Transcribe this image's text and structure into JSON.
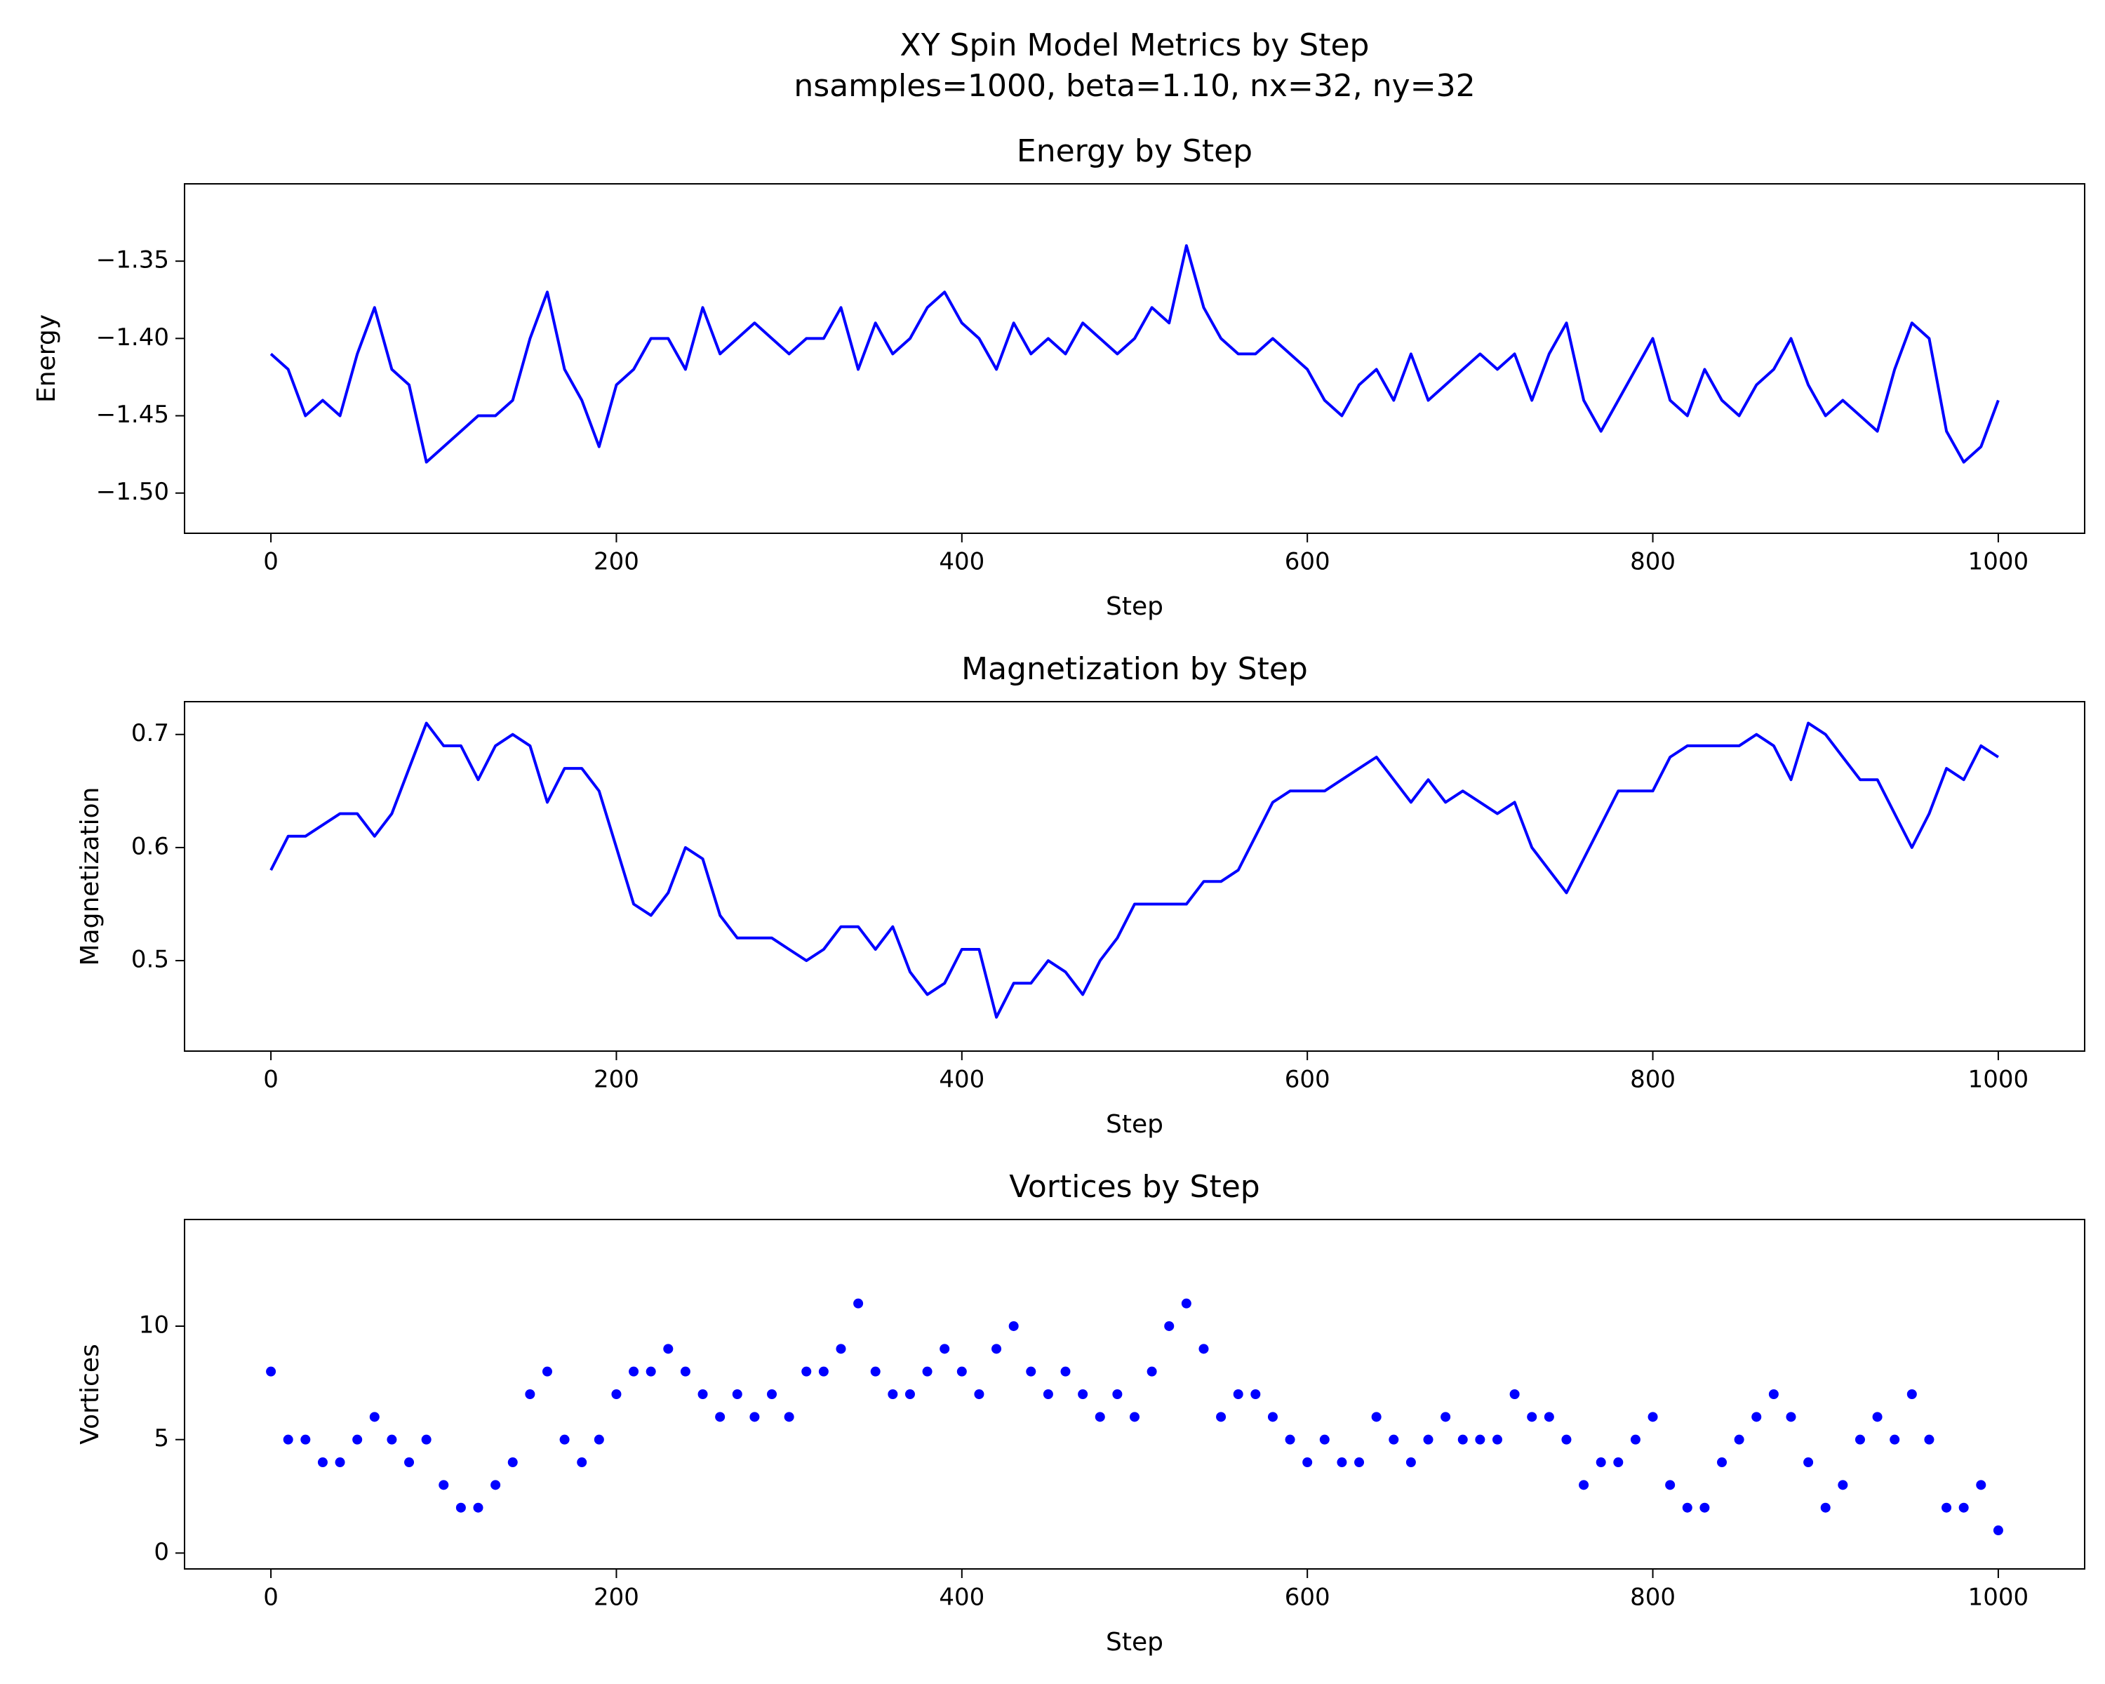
{
  "title": "XY Spin Model Metrics by Step",
  "subtitle": "nsamples=1000, beta=1.10, nx=32, ny=32",
  "chart_data": [
    {
      "type": "line",
      "title": "Energy by Step",
      "xlabel": "Step",
      "ylabel": "Energy",
      "color": "#0000ff",
      "x": [
        0,
        10,
        20,
        30,
        40,
        50,
        60,
        70,
        80,
        90,
        100,
        110,
        120,
        130,
        140,
        150,
        160,
        170,
        180,
        190,
        200,
        210,
        220,
        230,
        240,
        250,
        260,
        270,
        280,
        290,
        300,
        310,
        320,
        330,
        340,
        350,
        360,
        370,
        380,
        390,
        400,
        410,
        420,
        430,
        440,
        450,
        460,
        470,
        480,
        490,
        500,
        510,
        520,
        530,
        540,
        550,
        560,
        570,
        580,
        590,
        600,
        610,
        620,
        630,
        640,
        650,
        660,
        670,
        680,
        690,
        700,
        710,
        720,
        730,
        740,
        750,
        760,
        770,
        780,
        790,
        800,
        810,
        820,
        830,
        840,
        850,
        860,
        870,
        880,
        890,
        900,
        910,
        920,
        930,
        940,
        950,
        960,
        970,
        980,
        990,
        1000
      ],
      "values": [
        -1.41,
        -1.42,
        -1.45,
        -1.44,
        -1.45,
        -1.41,
        -1.38,
        -1.42,
        -1.43,
        -1.48,
        -1.47,
        -1.46,
        -1.45,
        -1.45,
        -1.44,
        -1.4,
        -1.37,
        -1.42,
        -1.44,
        -1.47,
        -1.43,
        -1.42,
        -1.4,
        -1.4,
        -1.42,
        -1.38,
        -1.41,
        -1.4,
        -1.39,
        -1.4,
        -1.41,
        -1.4,
        -1.4,
        -1.38,
        -1.42,
        -1.39,
        -1.41,
        -1.4,
        -1.38,
        -1.37,
        -1.39,
        -1.4,
        -1.42,
        -1.39,
        -1.41,
        -1.4,
        -1.41,
        -1.39,
        -1.4,
        -1.41,
        -1.4,
        -1.38,
        -1.39,
        -1.34,
        -1.38,
        -1.4,
        -1.41,
        -1.41,
        -1.4,
        -1.41,
        -1.42,
        -1.44,
        -1.45,
        -1.43,
        -1.42,
        -1.44,
        -1.41,
        -1.44,
        -1.43,
        -1.42,
        -1.41,
        -1.42,
        -1.41,
        -1.44,
        -1.41,
        -1.39,
        -1.44,
        -1.46,
        -1.44,
        -1.42,
        -1.4,
        -1.44,
        -1.45,
        -1.42,
        -1.44,
        -1.45,
        -1.43,
        -1.42,
        -1.4,
        -1.43,
        -1.45,
        -1.44,
        -1.45,
        -1.46,
        -1.42,
        -1.39,
        -1.4,
        -1.46,
        -1.48,
        -1.47,
        -1.44
      ],
      "xlim": [
        -50,
        1050
      ],
      "ylim": [
        -1.526,
        -1.3
      ],
      "xticks": [
        0,
        200,
        400,
        600,
        800,
        1000
      ],
      "yticks": [
        {
          "value": -1.5,
          "label": "−1.50"
        },
        {
          "value": -1.45,
          "label": "−1.45"
        },
        {
          "value": -1.4,
          "label": "−1.40"
        },
        {
          "value": -1.35,
          "label": "−1.35"
        }
      ]
    },
    {
      "type": "line",
      "title": "Magnetization by Step",
      "xlabel": "Step",
      "ylabel": "Magnetization",
      "color": "#0000ff",
      "x": [
        0,
        10,
        20,
        30,
        40,
        50,
        60,
        70,
        80,
        90,
        100,
        110,
        120,
        130,
        140,
        150,
        160,
        170,
        180,
        190,
        200,
        210,
        220,
        230,
        240,
        250,
        260,
        270,
        280,
        290,
        300,
        310,
        320,
        330,
        340,
        350,
        360,
        370,
        380,
        390,
        400,
        410,
        420,
        430,
        440,
        450,
        460,
        470,
        480,
        490,
        500,
        510,
        520,
        530,
        540,
        550,
        560,
        570,
        580,
        590,
        600,
        610,
        620,
        630,
        640,
        650,
        660,
        670,
        680,
        690,
        700,
        710,
        720,
        730,
        740,
        750,
        760,
        770,
        780,
        790,
        800,
        810,
        820,
        830,
        840,
        850,
        860,
        870,
        880,
        890,
        900,
        910,
        920,
        930,
        940,
        950,
        960,
        970,
        980,
        990,
        1000
      ],
      "values": [
        0.58,
        0.61,
        0.61,
        0.62,
        0.63,
        0.63,
        0.61,
        0.63,
        0.67,
        0.71,
        0.69,
        0.69,
        0.66,
        0.69,
        0.7,
        0.69,
        0.64,
        0.67,
        0.67,
        0.65,
        0.6,
        0.55,
        0.54,
        0.56,
        0.6,
        0.59,
        0.54,
        0.52,
        0.52,
        0.52,
        0.51,
        0.5,
        0.51,
        0.53,
        0.53,
        0.51,
        0.53,
        0.49,
        0.47,
        0.48,
        0.51,
        0.51,
        0.45,
        0.48,
        0.48,
        0.5,
        0.49,
        0.47,
        0.5,
        0.52,
        0.55,
        0.55,
        0.55,
        0.55,
        0.57,
        0.57,
        0.58,
        0.61,
        0.64,
        0.65,
        0.65,
        0.65,
        0.66,
        0.67,
        0.68,
        0.66,
        0.64,
        0.66,
        0.64,
        0.65,
        0.64,
        0.63,
        0.64,
        0.6,
        0.58,
        0.56,
        0.59,
        0.62,
        0.65,
        0.65,
        0.65,
        0.68,
        0.69,
        0.69,
        0.69,
        0.69,
        0.7,
        0.69,
        0.66,
        0.71,
        0.7,
        0.68,
        0.66,
        0.66,
        0.63,
        0.6,
        0.63,
        0.67,
        0.66,
        0.69,
        0.68
      ],
      "xlim": [
        -50,
        1050
      ],
      "ylim": [
        0.42,
        0.729
      ],
      "xticks": [
        0,
        200,
        400,
        600,
        800,
        1000
      ],
      "yticks": [
        0.5,
        0.6,
        0.7
      ]
    },
    {
      "type": "scatter",
      "title": "Vortices by Step",
      "xlabel": "Step",
      "ylabel": "Vortices",
      "color": "#0000ff",
      "x": [
        0,
        10,
        20,
        30,
        40,
        50,
        60,
        70,
        80,
        90,
        100,
        110,
        120,
        130,
        140,
        150,
        160,
        170,
        180,
        190,
        200,
        210,
        220,
        230,
        240,
        250,
        260,
        270,
        280,
        290,
        300,
        310,
        320,
        330,
        340,
        350,
        360,
        370,
        380,
        390,
        400,
        410,
        420,
        430,
        440,
        450,
        460,
        470,
        480,
        490,
        500,
        510,
        520,
        530,
        540,
        550,
        560,
        570,
        580,
        590,
        600,
        610,
        620,
        630,
        640,
        650,
        660,
        670,
        680,
        690,
        700,
        710,
        720,
        730,
        740,
        750,
        760,
        770,
        780,
        790,
        800,
        810,
        820,
        830,
        840,
        850,
        860,
        870,
        880,
        890,
        900,
        910,
        920,
        930,
        940,
        950,
        960,
        970,
        980,
        990,
        1000
      ],
      "values": [
        8,
        5,
        5,
        4,
        4,
        5,
        6,
        5,
        4,
        5,
        3,
        2,
        2,
        3,
        4,
        7,
        8,
        5,
        4,
        5,
        7,
        8,
        8,
        9,
        8,
        7,
        6,
        7,
        6,
        7,
        6,
        8,
        8,
        9,
        11,
        8,
        7,
        7,
        8,
        9,
        8,
        7,
        9,
        10,
        8,
        7,
        8,
        7,
        6,
        7,
        6,
        8,
        10,
        11,
        9,
        6,
        7,
        7,
        6,
        5,
        4,
        5,
        4,
        4,
        6,
        5,
        4,
        5,
        6,
        5,
        5,
        5,
        7,
        6,
        6,
        5,
        3,
        4,
        4,
        5,
        6,
        3,
        2,
        2,
        4,
        5,
        6,
        7,
        6,
        4,
        2,
        3,
        5,
        6,
        5,
        7,
        5,
        2,
        2,
        3,
        1
      ],
      "xlim": [
        -50,
        1050
      ],
      "ylim": [
        -0.7,
        14.7
      ],
      "xticks": [
        0,
        200,
        400,
        600,
        800,
        1000
      ],
      "yticks": [
        0,
        5,
        10
      ]
    }
  ]
}
